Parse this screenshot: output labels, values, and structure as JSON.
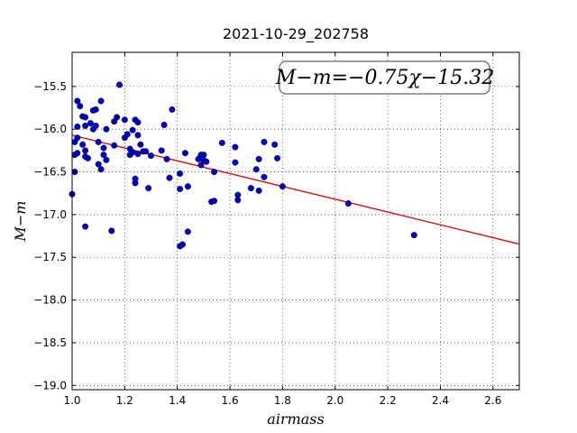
{
  "chart_data": {
    "type": "scatter",
    "title": "2021-10-29_202758",
    "xlabel": "airmass",
    "ylabel": "M−m",
    "xlim": [
      1.0,
      2.7
    ],
    "ylim": [
      -19.05,
      -15.1
    ],
    "x_ticks": [
      1.0,
      1.2,
      1.4,
      1.6,
      1.8,
      2.0,
      2.2,
      2.4,
      2.6
    ],
    "x_tick_labels": [
      "1.0",
      "1.2",
      "1.4",
      "1.6",
      "1.8",
      "2.0",
      "2.2",
      "2.4",
      "2.6"
    ],
    "y_ticks": [
      -15.5,
      -16.0,
      -16.5,
      -17.0,
      -17.5,
      -18.0,
      -18.5,
      -19.0
    ],
    "y_tick_labels": [
      "−15.5",
      "−16.0",
      "−16.5",
      "−17.0",
      "−17.5",
      "−18.0",
      "−18.5",
      "−19.0"
    ],
    "grid": true,
    "annotation": "M−m=−0.75χ−15.32",
    "fit_line": {
      "slope": -0.75,
      "intercept": -15.32,
      "color": "#dd0000"
    },
    "marker_color": "#0000bb",
    "points": [
      [
        1.0,
        -16.76
      ],
      [
        1.01,
        -16.15
      ],
      [
        1.01,
        -16.3
      ],
      [
        1.01,
        -16.5
      ],
      [
        1.02,
        -15.67
      ],
      [
        1.02,
        -16.1
      ],
      [
        1.02,
        -16.28
      ],
      [
        1.02,
        -15.97
      ],
      [
        1.03,
        -15.73
      ],
      [
        1.04,
        -15.85
      ],
      [
        1.04,
        -16.18
      ],
      [
        1.05,
        -16.32
      ],
      [
        1.05,
        -15.96
      ],
      [
        1.05,
        -17.14
      ],
      [
        1.05,
        -16.25
      ],
      [
        1.05,
        -15.86
      ],
      [
        1.06,
        -16.34
      ],
      [
        1.07,
        -15.93
      ],
      [
        1.08,
        -15.78
      ],
      [
        1.08,
        -16.0
      ],
      [
        1.09,
        -15.96
      ],
      [
        1.09,
        -15.77
      ],
      [
        1.1,
        -16.15
      ],
      [
        1.1,
        -16.41
      ],
      [
        1.11,
        -15.67
      ],
      [
        1.11,
        -16.47
      ],
      [
        1.12,
        -16.22
      ],
      [
        1.12,
        -16.3
      ],
      [
        1.13,
        -16.36
      ],
      [
        1.13,
        -16.0
      ],
      [
        1.15,
        -17.19
      ],
      [
        1.16,
        -15.91
      ],
      [
        1.16,
        -16.19
      ],
      [
        1.17,
        -15.86
      ],
      [
        1.18,
        -15.48
      ],
      [
        1.2,
        -15.89
      ],
      [
        1.2,
        -16.1
      ],
      [
        1.21,
        -16.06
      ],
      [
        1.22,
        -16.23
      ],
      [
        1.22,
        -16.3
      ],
      [
        1.23,
        -16.01
      ],
      [
        1.23,
        -16.27
      ],
      [
        1.24,
        -16.63
      ],
      [
        1.24,
        -16.58
      ],
      [
        1.24,
        -15.89
      ],
      [
        1.25,
        -15.92
      ],
      [
        1.25,
        -16.07
      ],
      [
        1.25,
        -16.29
      ],
      [
        1.26,
        -16.18
      ],
      [
        1.27,
        -16.26
      ],
      [
        1.28,
        -16.26
      ],
      [
        1.29,
        -16.69
      ],
      [
        1.3,
        -16.31
      ],
      [
        1.34,
        -16.25
      ],
      [
        1.35,
        -15.95
      ],
      [
        1.36,
        -16.35
      ],
      [
        1.37,
        -16.57
      ],
      [
        1.38,
        -15.77
      ],
      [
        1.41,
        -16.52
      ],
      [
        1.41,
        -16.7
      ],
      [
        1.41,
        -17.37
      ],
      [
        1.42,
        -17.35
      ],
      [
        1.43,
        -16.28
      ],
      [
        1.44,
        -17.2
      ],
      [
        1.44,
        -16.67
      ],
      [
        1.48,
        -16.35
      ],
      [
        1.49,
        -16.42
      ],
      [
        1.49,
        -16.3
      ],
      [
        1.5,
        -16.36
      ],
      [
        1.5,
        -16.3
      ],
      [
        1.51,
        -16.38
      ],
      [
        1.53,
        -16.85
      ],
      [
        1.54,
        -16.84
      ],
      [
        1.54,
        -16.5
      ],
      [
        1.57,
        -16.16
      ],
      [
        1.62,
        -16.21
      ],
      [
        1.62,
        -16.39
      ],
      [
        1.63,
        -16.77
      ],
      [
        1.63,
        -16.83
      ],
      [
        1.68,
        -16.69
      ],
      [
        1.7,
        -16.47
      ],
      [
        1.71,
        -16.35
      ],
      [
        1.71,
        -16.72
      ],
      [
        1.73,
        -16.15
      ],
      [
        1.73,
        -16.56
      ],
      [
        1.77,
        -16.18
      ],
      [
        1.78,
        -16.34
      ],
      [
        1.8,
        -16.67
      ],
      [
        2.05,
        -16.87
      ],
      [
        2.3,
        -17.24
      ]
    ]
  }
}
